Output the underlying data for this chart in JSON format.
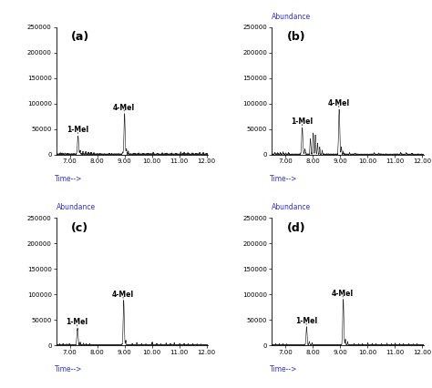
{
  "panels": [
    "(a)",
    "(b)",
    "(c)",
    "(d)"
  ],
  "xlabel": "Time-->",
  "ylabel": "Abundance",
  "xlim": [
    6.5,
    12.05
  ],
  "ylim": [
    0,
    250000
  ],
  "yticks": [
    0,
    50000,
    100000,
    150000,
    200000,
    250000
  ],
  "xticks": [
    7.0,
    8.0,
    9.0,
    10.0,
    11.0,
    12.0
  ],
  "abundance_color": "#3333cc",
  "time_color": "#3333cc",
  "line_color": "#222222",
  "background": "#ffffff",
  "show_abundance_label": [
    false,
    true,
    true,
    true
  ],
  "panel_label_fontsize": 9,
  "tick_fontsize": 5.5,
  "annot_fontsize": 5.5
}
